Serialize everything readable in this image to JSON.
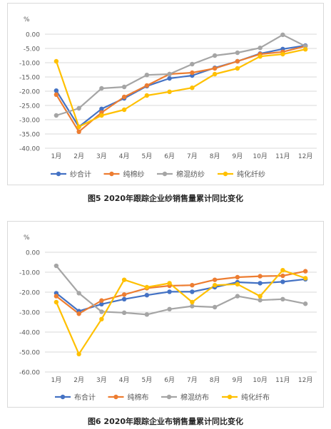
{
  "chart_data": [
    {
      "type": "line",
      "caption": "图5 2020年跟踪企业纱销售量累计同比变化",
      "unit": "%",
      "categories": [
        "1月",
        "2月",
        "3月",
        "4月",
        "5月",
        "6月",
        "7月",
        "8月",
        "9月",
        "10月",
        "11月",
        "12月"
      ],
      "ylim": [
        -40,
        0
      ],
      "yticks": [
        "0.00",
        "-5.00",
        "-10.00",
        "-15.00",
        "-20.00",
        "-25.00",
        "-30.00",
        "-35.00",
        "-40.00"
      ],
      "grid": true,
      "legend": "bottom",
      "series": [
        {
          "name": "纱合计",
          "color": "#4472c4",
          "values": [
            -19.8,
            -32.5,
            -26.2,
            -22.5,
            -18.2,
            -15.5,
            -14.5,
            -11.8,
            -9.5,
            -6.8,
            -5.2,
            -4.0
          ]
        },
        {
          "name": "纯棉纱",
          "color": "#ed7d31",
          "values": [
            -21.2,
            -34.2,
            -27.5,
            -22.0,
            -18.0,
            -14.0,
            -13.5,
            -12.0,
            -9.5,
            -7.0,
            -6.2,
            -4.2
          ]
        },
        {
          "name": "棉混纺纱",
          "color": "#a5a5a5",
          "values": [
            -28.5,
            -26.0,
            -19.0,
            -18.5,
            -14.3,
            -14.0,
            -10.5,
            -7.5,
            -6.5,
            -4.8,
            -0.2,
            -4.2
          ]
        },
        {
          "name": "纯化纤纱",
          "color": "#ffc000",
          "values": [
            -9.5,
            -32.5,
            -28.5,
            -26.5,
            -21.5,
            -20.2,
            -18.8,
            -14.0,
            -12.0,
            -7.8,
            -7.0,
            -5.3
          ]
        }
      ]
    },
    {
      "type": "line",
      "caption": "图6 2020年跟踪企业布销售量累计同比变化",
      "unit": "%",
      "categories": [
        "1月",
        "2月",
        "3月",
        "4月",
        "5月",
        "6月",
        "7月",
        "8月",
        "9月",
        "10月",
        "11月",
        "12月"
      ],
      "ylim": [
        -60,
        0
      ],
      "yticks": [
        "0.00",
        "-10.00",
        "-20.00",
        "-30.00",
        "-40.00",
        "-50.00",
        "-60.00"
      ],
      "grid": true,
      "legend": "bottom",
      "series": [
        {
          "name": "布合计",
          "color": "#4472c4",
          "values": [
            -20.5,
            -29.5,
            -26.0,
            -23.5,
            -21.5,
            -19.8,
            -19.8,
            -17.5,
            -15.0,
            -15.5,
            -14.8,
            -13.5
          ]
        },
        {
          "name": "纯棉布",
          "color": "#ed7d31",
          "values": [
            -22.0,
            -30.8,
            -24.2,
            -21.2,
            -18.0,
            -16.8,
            -16.5,
            -13.8,
            -12.5,
            -12.0,
            -11.8,
            -9.5
          ]
        },
        {
          "name": "棉混纺布",
          "color": "#a5a5a5",
          "values": [
            -6.8,
            -20.5,
            -29.8,
            -30.3,
            -31.2,
            -28.5,
            -27.0,
            -27.5,
            -22.0,
            -24.0,
            -23.5,
            -25.8
          ]
        },
        {
          "name": "纯化纤布",
          "color": "#ffc000",
          "values": [
            -25.0,
            -51.0,
            -33.5,
            -13.8,
            -17.5,
            -15.5,
            -25.0,
            -16.5,
            -16.0,
            -22.0,
            -9.0,
            -13.0
          ]
        }
      ]
    }
  ]
}
